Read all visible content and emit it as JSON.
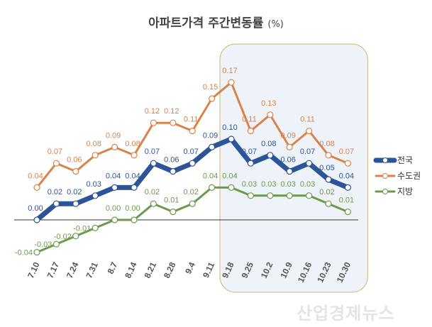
{
  "chart_data": {
    "type": "line",
    "title": "아파트가격 주간변동률",
    "unit": "(%)",
    "categories": [
      "7.10",
      "7.17",
      "7.24",
      "7.31",
      "8.7",
      "8.14",
      "8.21",
      "8.28",
      "9.4",
      "9.11",
      "9.18",
      "9.25",
      "10.2",
      "10.9",
      "10.16",
      "10.23",
      "10.30"
    ],
    "series": [
      {
        "name": "전국",
        "color": "#2d5497",
        "values": [
          0.0,
          0.02,
          0.02,
          0.03,
          0.04,
          0.04,
          0.07,
          0.06,
          0.07,
          0.09,
          0.1,
          0.07,
          0.08,
          0.06,
          0.07,
          0.05,
          0.04
        ]
      },
      {
        "name": "수도권",
        "color": "#d9824a",
        "values": [
          0.04,
          0.07,
          0.06,
          0.08,
          0.09,
          0.08,
          0.12,
          0.12,
          0.11,
          0.15,
          0.17,
          0.11,
          0.13,
          0.09,
          0.11,
          0.08,
          0.07
        ]
      },
      {
        "name": "지방",
        "color": "#6b9a4a",
        "values": [
          -0.04,
          -0.03,
          -0.02,
          -0.01,
          0.0,
          0.0,
          0.02,
          0.01,
          0.02,
          0.04,
          0.04,
          0.03,
          0.03,
          0.03,
          0.03,
          0.02,
          0.01
        ]
      }
    ],
    "highlight_range": [
      "9.18",
      "10.30"
    ],
    "legend_position": "right",
    "grid": false
  },
  "watermark": "산업경제뉴스"
}
